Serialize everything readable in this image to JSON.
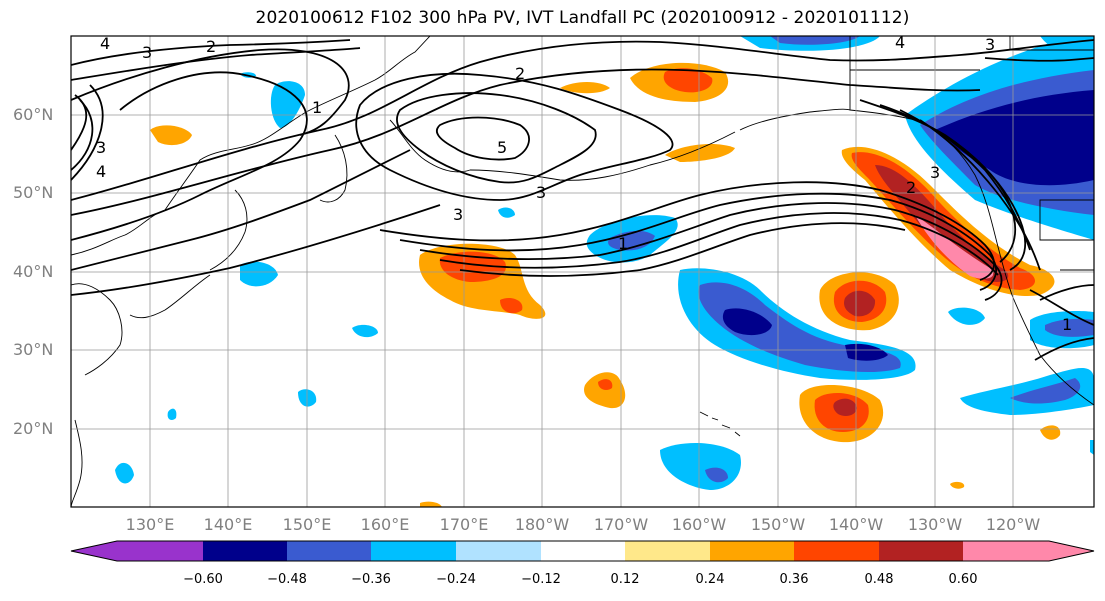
{
  "title": "2020100612 F102 300 hPa PV, IVT Landfall PC (2020100912 - 2020101112)",
  "lat_labels": [
    "60°N",
    "50°N",
    "40°N",
    "30°N",
    "20°N"
  ],
  "lon_labels": [
    "130°E",
    "140°E",
    "150°E",
    "160°E",
    "170°E",
    "180°W",
    "170°W",
    "160°W",
    "150°W",
    "140°W",
    "130°W",
    "120°W"
  ],
  "colorbar": {
    "ticks": [
      "−0.60",
      "−0.48",
      "−0.36",
      "−0.24",
      "−0.12",
      "0.12",
      "0.24",
      "0.36",
      "0.48",
      "0.60"
    ],
    "colors": [
      "#9933cc",
      "#00008b",
      "#3a5bd0",
      "#00bfff",
      "#b0e2ff",
      "#ffffff",
      "#ffe88a",
      "#ffa500",
      "#ff4500",
      "#b22222",
      "#ff88aa"
    ]
  },
  "contour_labels": [
    "4",
    "3",
    "2",
    "1",
    "3",
    "4",
    "2",
    "5",
    "3",
    "3",
    "1",
    "2",
    "4",
    "3",
    "3",
    "1"
  ]
}
